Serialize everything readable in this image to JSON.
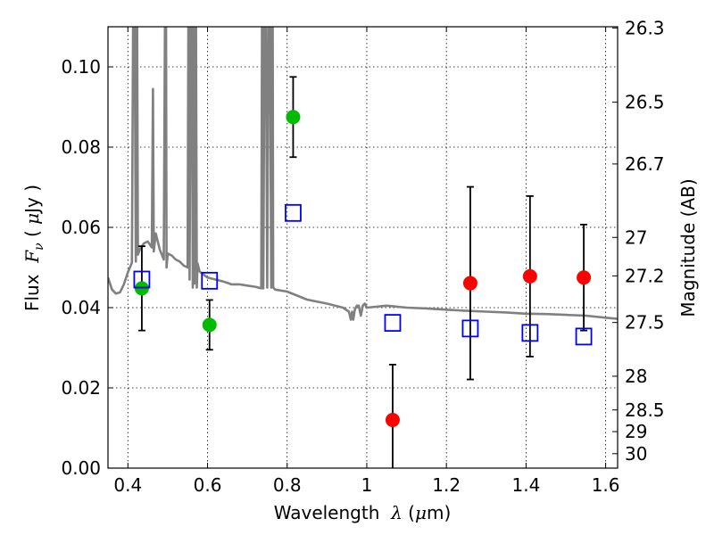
{
  "chart_data": {
    "type": "scatter",
    "title": "",
    "xlabel": "Wavelength",
    "xlabel_symbol": "λ",
    "xlabel_unit_open": " (",
    "xlabel_unit_mu": "μ",
    "xlabel_unit_rest": "m)",
    "ylabel": "Flux",
    "ylabel_symbol": "F",
    "ylabel_subscript": "ν",
    "ylabel_unit_open": " ( ",
    "ylabel_unit_mu": "μ",
    "ylabel_unit_rest": "Jy )",
    "y2label": "Magnitude (AB)",
    "xlim": [
      0.35,
      1.63
    ],
    "ylim": [
      0.0,
      0.11
    ],
    "grid": true,
    "grid_style": "dotted",
    "x_ticks": [
      0.4,
      0.6,
      0.8,
      1.0,
      1.2,
      1.4,
      1.6
    ],
    "x_tick_labels": [
      "0.4",
      "0.6",
      "0.8",
      "1",
      "1.2",
      "1.4",
      "1.6"
    ],
    "y_ticks": [
      0.0,
      0.02,
      0.04,
      0.06,
      0.08,
      0.1
    ],
    "y_tick_labels": [
      "0.00",
      "0.02",
      "0.04",
      "0.06",
      "0.08",
      "0.10"
    ],
    "y2_ticks": [
      {
        "flux": 0.1097,
        "label": "26.3"
      },
      {
        "flux": 0.0912,
        "label": "26.5"
      },
      {
        "flux": 0.0758,
        "label": "26.7"
      },
      {
        "flux": 0.0575,
        "label": "27"
      },
      {
        "flux": 0.0479,
        "label": "27.2"
      },
      {
        "flux": 0.0363,
        "label": "27.5"
      },
      {
        "flux": 0.0229,
        "label": "28"
      },
      {
        "flux": 0.0145,
        "label": "28.5"
      },
      {
        "flux": 0.0091,
        "label": "29"
      },
      {
        "flux": 0.0036,
        "label": "30"
      }
    ],
    "series": [
      {
        "kind": "line",
        "color": "#808080",
        "x": [
          0.35,
          0.36,
          0.37,
          0.38,
          0.39,
          0.4,
          0.41,
          0.415,
          0.42,
          0.422,
          0.425,
          0.43,
          0.44,
          0.45,
          0.46,
          0.463,
          0.465,
          0.47,
          0.48,
          0.49,
          0.495,
          0.497,
          0.5,
          0.51,
          0.52,
          0.53,
          0.54,
          0.55,
          0.553,
          0.555,
          0.56,
          0.563,
          0.565,
          0.567,
          0.57,
          0.573,
          0.575,
          0.58,
          0.6,
          0.62,
          0.64,
          0.66,
          0.68,
          0.7,
          0.72,
          0.735,
          0.738,
          0.74,
          0.745,
          0.75,
          0.755,
          0.76,
          0.763,
          0.765,
          0.77,
          0.8,
          0.85,
          0.9,
          0.94,
          0.955,
          0.96,
          0.963,
          0.966,
          0.97,
          0.975,
          0.98,
          0.985,
          0.99,
          0.995,
          1.0,
          1.05,
          1.1,
          1.15,
          1.2,
          1.25,
          1.3,
          1.35,
          1.4,
          1.45,
          1.5,
          1.55,
          1.6,
          1.63
        ],
        "y": [
          0.0475,
          0.0445,
          0.0435,
          0.0438,
          0.0458,
          0.0488,
          0.0512,
          0.15,
          0.0515,
          0.15,
          0.0532,
          0.0545,
          0.056,
          0.0565,
          0.055,
          0.0945,
          0.054,
          0.0585,
          0.0545,
          0.052,
          0.15,
          0.05,
          0.0535,
          0.053,
          0.052,
          0.0515,
          0.0505,
          0.05,
          0.15,
          0.047,
          0.15,
          0.045,
          0.15,
          0.046,
          0.15,
          0.045,
          0.051,
          0.049,
          0.0475,
          0.047,
          0.0465,
          0.0458,
          0.0458,
          0.0455,
          0.0452,
          0.0448,
          0.15,
          0.0448,
          0.15,
          0.045,
          0.15,
          0.045,
          0.15,
          0.045,
          0.0445,
          0.044,
          0.042,
          0.041,
          0.04,
          0.039,
          0.037,
          0.039,
          0.037,
          0.0395,
          0.0405,
          0.0405,
          0.038,
          0.0405,
          0.041,
          0.04,
          0.0405,
          0.04,
          0.0398,
          0.0395,
          0.0392,
          0.039,
          0.0388,
          0.0385,
          0.0384,
          0.0382,
          0.038,
          0.0375,
          0.0372
        ]
      },
      {
        "kind": "points",
        "marker": "circle",
        "color": "#00bb00",
        "x": [
          0.435,
          0.605,
          0.815
        ],
        "y": [
          0.0448,
          0.0357,
          0.0875
        ],
        "err": [
          0.0105,
          0.0062,
          0.01
        ]
      },
      {
        "kind": "points",
        "marker": "circle",
        "color": "#ff0000",
        "x": [
          1.065,
          1.26,
          1.41,
          1.545
        ],
        "y": [
          0.012,
          0.0461,
          0.0478,
          0.0475
        ],
        "err": [
          0.0138,
          0.024,
          0.02,
          0.0132
        ]
      },
      {
        "kind": "points",
        "marker": "open-square",
        "color": "#0000ff",
        "x": [
          0.435,
          0.605,
          0.815,
          1.065,
          1.26,
          1.41,
          1.545
        ],
        "y": [
          0.047,
          0.0467,
          0.0636,
          0.0362,
          0.0348,
          0.0337,
          0.0328
        ]
      }
    ]
  }
}
